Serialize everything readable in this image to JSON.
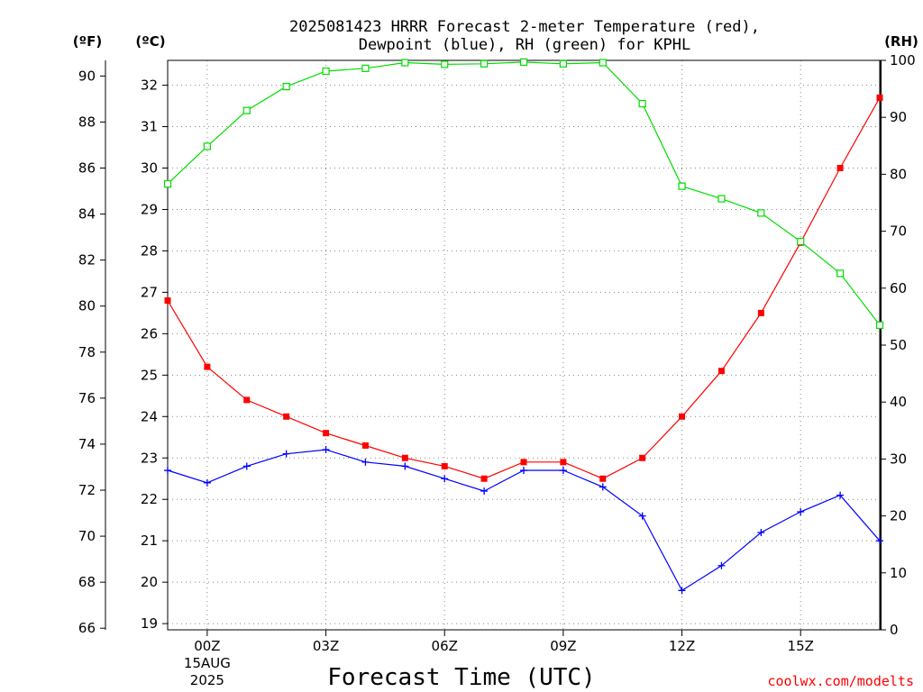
{
  "chart_data": {
    "type": "line",
    "title_line1": "2025081423 HRRR Forecast 2-meter Temperature (red),",
    "title_line2": "Dewpoint (blue), RH (green) for KPHL",
    "xlabel": "Forecast Time (UTC)",
    "credit": "coolwx.com/modelts",
    "left_axis_outer_label": "(ºF)",
    "left_axis_inner_label": "(ºC)",
    "right_axis_label": "(RH)",
    "x_hours": [
      -1,
      0,
      1,
      2,
      3,
      4,
      5,
      6,
      7,
      8,
      9,
      10,
      11,
      12,
      13,
      14,
      15,
      16,
      17
    ],
    "x_ticks": [
      {
        "hour": 0,
        "label": "00Z",
        "sub1": "15AUG",
        "sub2": "2025"
      },
      {
        "hour": 3,
        "label": "03Z",
        "sub1": "",
        "sub2": ""
      },
      {
        "hour": 6,
        "label": "06Z",
        "sub1": "",
        "sub2": ""
      },
      {
        "hour": 9,
        "label": "09Z",
        "sub1": "",
        "sub2": ""
      },
      {
        "hour": 12,
        "label": "12Z",
        "sub1": "",
        "sub2": ""
      },
      {
        "hour": 15,
        "label": "15Z",
        "sub1": "",
        "sub2": ""
      }
    ],
    "xlim": [
      -1,
      17
    ],
    "f_ticks": [
      "66",
      "68",
      "70",
      "72",
      "74",
      "76",
      "78",
      "80",
      "82",
      "84",
      "86",
      "88",
      "90"
    ],
    "c_ticks": [
      "19",
      "20",
      "21",
      "22",
      "23",
      "24",
      "25",
      "26",
      "27",
      "28",
      "29",
      "30",
      "31",
      "32"
    ],
    "rh_ticks": [
      "0",
      "10",
      "20",
      "30",
      "40",
      "50",
      "60",
      "70",
      "80",
      "90",
      "100"
    ],
    "temp_ylim_c": [
      18.85,
      32.6
    ],
    "rh_ylim": [
      0,
      100
    ],
    "colors": {
      "temperature": "#ff0000",
      "dewpoint": "#0000ff",
      "rh": "#00dd00",
      "credit": "#ff0000",
      "grid": "#888888"
    },
    "series": [
      {
        "name": "Temperature",
        "unit": "C",
        "values": [
          26.8,
          25.2,
          24.4,
          24.0,
          23.6,
          23.3,
          23.0,
          22.8,
          22.5,
          22.9,
          22.9,
          22.5,
          23.0,
          24.0,
          25.1,
          26.5,
          28.2,
          30.0,
          31.7
        ]
      },
      {
        "name": "Dewpoint",
        "unit": "C",
        "values": [
          22.7,
          22.4,
          22.8,
          23.1,
          23.2,
          22.9,
          22.8,
          22.5,
          22.2,
          22.7,
          22.7,
          22.3,
          21.6,
          19.8,
          20.4,
          21.2,
          21.7,
          22.1,
          21.0
        ]
      },
      {
        "name": "RH",
        "unit": "%",
        "values": [
          78.3,
          84.9,
          91.2,
          95.4,
          98.1,
          98.6,
          99.6,
          99.3,
          99.4,
          99.7,
          99.4,
          99.6,
          92.4,
          77.9,
          75.7,
          73.2,
          68.2,
          62.6,
          53.5
        ]
      }
    ]
  }
}
